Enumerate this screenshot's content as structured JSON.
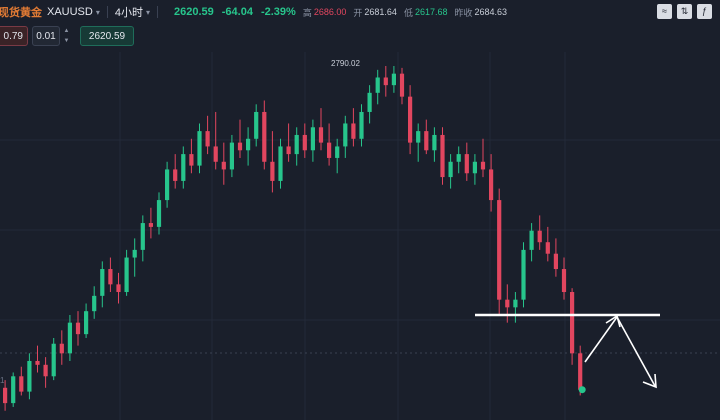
{
  "header": {
    "symbol_name": "现货黄金",
    "ticker": "XAUUSD",
    "ticker_caret": "▾",
    "interval": "4小时",
    "interval_caret": "▾",
    "price": "2620.59",
    "change": "-64.04",
    "change_pct": "-2.39%",
    "high_label": "高",
    "high_value": "2686.00",
    "open_label": "开",
    "open_value": "2681.64",
    "low_label": "低",
    "low_value": "2617.68",
    "close_label": "昨收",
    "close_value": "2684.63"
  },
  "toolbar": {
    "icons": [
      "line-settings-icon",
      "compare-icon",
      "indicator-icon"
    ],
    "glyphs": [
      "≈",
      "⇅",
      "ƒ"
    ]
  },
  "trade": {
    "sell_price": "0.79",
    "quantity": "0.01",
    "stepper_up": "▲",
    "stepper_down": "▼",
    "buy_price": "2620.59"
  },
  "chart_annotation": {
    "peak_label": "2790.02"
  },
  "axis": {
    "left_edge_label": "1"
  },
  "colors": {
    "background": "#1a1f2b",
    "up": "#27c58c",
    "down": "#e2465f",
    "accent": "#e07a34"
  },
  "chart_data": {
    "type": "candlestick",
    "candles_ohlc": [
      [
        2622,
        2626,
        2610,
        2614
      ],
      [
        2614,
        2630,
        2612,
        2628
      ],
      [
        2628,
        2633,
        2618,
        2620
      ],
      [
        2620,
        2640,
        2616,
        2636
      ],
      [
        2636,
        2644,
        2630,
        2634
      ],
      [
        2634,
        2638,
        2622,
        2628
      ],
      [
        2628,
        2648,
        2626,
        2645
      ],
      [
        2645,
        2652,
        2634,
        2640
      ],
      [
        2640,
        2660,
        2636,
        2656
      ],
      [
        2656,
        2662,
        2644,
        2650
      ],
      [
        2650,
        2666,
        2648,
        2662
      ],
      [
        2662,
        2675,
        2658,
        2670
      ],
      [
        2670,
        2688,
        2664,
        2684
      ],
      [
        2684,
        2690,
        2672,
        2676
      ],
      [
        2676,
        2682,
        2666,
        2672
      ],
      [
        2672,
        2694,
        2670,
        2690
      ],
      [
        2690,
        2700,
        2680,
        2694
      ],
      [
        2694,
        2712,
        2688,
        2708
      ],
      [
        2708,
        2716,
        2700,
        2706
      ],
      [
        2706,
        2724,
        2702,
        2720
      ],
      [
        2720,
        2740,
        2716,
        2736
      ],
      [
        2736,
        2744,
        2726,
        2730
      ],
      [
        2730,
        2748,
        2726,
        2744
      ],
      [
        2744,
        2752,
        2734,
        2738
      ],
      [
        2738,
        2760,
        2734,
        2756
      ],
      [
        2756,
        2764,
        2744,
        2748
      ],
      [
        2748,
        2766,
        2736,
        2740
      ],
      [
        2740,
        2750,
        2728,
        2736
      ],
      [
        2736,
        2754,
        2732,
        2750
      ],
      [
        2750,
        2762,
        2742,
        2746
      ],
      [
        2746,
        2758,
        2738,
        2752
      ],
      [
        2752,
        2770,
        2748,
        2766
      ],
      [
        2766,
        2772,
        2736,
        2740
      ],
      [
        2740,
        2756,
        2724,
        2730
      ],
      [
        2730,
        2752,
        2726,
        2748
      ],
      [
        2748,
        2760,
        2740,
        2744
      ],
      [
        2744,
        2758,
        2738,
        2754
      ],
      [
        2754,
        2760,
        2742,
        2746
      ],
      [
        2746,
        2762,
        2740,
        2758
      ],
      [
        2758,
        2768,
        2746,
        2750
      ],
      [
        2750,
        2760,
        2738,
        2742
      ],
      [
        2742,
        2752,
        2734,
        2748
      ],
      [
        2748,
        2764,
        2742,
        2760
      ],
      [
        2760,
        2768,
        2748,
        2752
      ],
      [
        2752,
        2770,
        2748,
        2766
      ],
      [
        2766,
        2780,
        2760,
        2776
      ],
      [
        2776,
        2788,
        2770,
        2784
      ],
      [
        2784,
        2790,
        2774,
        2780
      ],
      [
        2780,
        2790,
        2776,
        2786
      ],
      [
        2786,
        2789,
        2770,
        2774
      ],
      [
        2774,
        2780,
        2744,
        2750
      ],
      [
        2750,
        2760,
        2740,
        2756
      ],
      [
        2756,
        2762,
        2744,
        2746
      ],
      [
        2746,
        2758,
        2740,
        2754
      ],
      [
        2754,
        2758,
        2728,
        2732
      ],
      [
        2732,
        2744,
        2726,
        2740
      ],
      [
        2740,
        2748,
        2734,
        2744
      ],
      [
        2744,
        2750,
        2730,
        2734
      ],
      [
        2734,
        2744,
        2728,
        2740
      ],
      [
        2740,
        2752,
        2732,
        2736
      ],
      [
        2736,
        2744,
        2714,
        2720
      ],
      [
        2720,
        2726,
        2660,
        2668
      ],
      [
        2668,
        2676,
        2656,
        2664
      ],
      [
        2664,
        2672,
        2656,
        2668
      ],
      [
        2668,
        2698,
        2664,
        2694
      ],
      [
        2694,
        2708,
        2688,
        2704
      ],
      [
        2704,
        2712,
        2694,
        2698
      ],
      [
        2698,
        2706,
        2688,
        2692
      ],
      [
        2692,
        2700,
        2680,
        2684
      ],
      [
        2684,
        2690,
        2668,
        2672
      ],
      [
        2672,
        2674,
        2634,
        2640
      ],
      [
        2640,
        2644,
        2618,
        2621
      ]
    ],
    "peak_value": 2790.02,
    "support_level": 2660,
    "projection": "bounce to support then drop",
    "ylim": [
      2600,
      2800
    ]
  }
}
